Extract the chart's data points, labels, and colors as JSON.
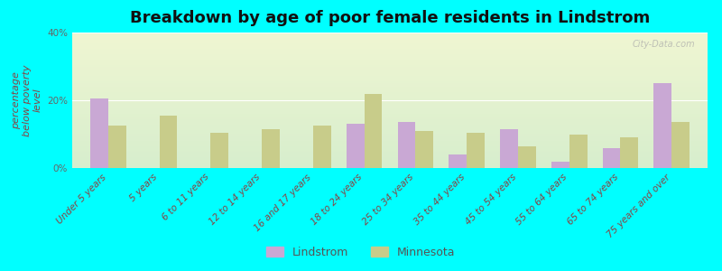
{
  "title": "Breakdown by age of poor female residents in Lindstrom",
  "categories": [
    "Under 5 years",
    "5 years",
    "6 to 11 years",
    "12 to 14 years",
    "16 and 17 years",
    "18 to 24 years",
    "25 to 34 years",
    "35 to 44 years",
    "45 to 54 years",
    "55 to 64 years",
    "65 to 74 years",
    "75 years and over"
  ],
  "lindstrom": [
    20.5,
    0,
    0,
    0,
    0,
    13.0,
    13.5,
    4.0,
    11.5,
    2.0,
    6.0,
    25.0
  ],
  "minnesota": [
    12.5,
    15.5,
    10.5,
    11.5,
    12.5,
    22.0,
    11.0,
    10.5,
    6.5,
    10.0,
    9.0,
    13.5
  ],
  "lindstrom_color": "#c9a8d4",
  "minnesota_color": "#c8cc8a",
  "background_color": "#00ffff",
  "ylabel": "percentage\nbelow poverty\nlevel",
  "ylim": [
    0,
    40
  ],
  "yticks": [
    0,
    20,
    40
  ],
  "ytick_labels": [
    "0%",
    "20%",
    "40%"
  ],
  "bar_width": 0.35,
  "title_fontsize": 13,
  "tick_fontsize": 7.5,
  "ylabel_fontsize": 8,
  "legend_labels": [
    "Lindstrom",
    "Minnesota"
  ],
  "watermark": "City-Data.com"
}
